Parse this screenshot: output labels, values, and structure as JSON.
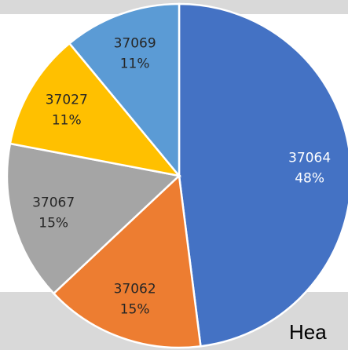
{
  "chart_data": {
    "type": "pie",
    "categories": [
      "37064",
      "37062",
      "37067",
      "37027",
      "37069"
    ],
    "values": [
      48,
      15,
      15,
      11,
      11
    ],
    "value_labels": [
      "48%",
      "15%",
      "15%",
      "11%",
      "11%"
    ],
    "colors": [
      "#4472c4",
      "#ed7d31",
      "#a5a5a5",
      "#ffc000",
      "#5b9bd5"
    ],
    "label_colors": [
      "#ffffff",
      "#262626",
      "#262626",
      "#262626",
      "#262626"
    ]
  },
  "footer_text": "Hea"
}
